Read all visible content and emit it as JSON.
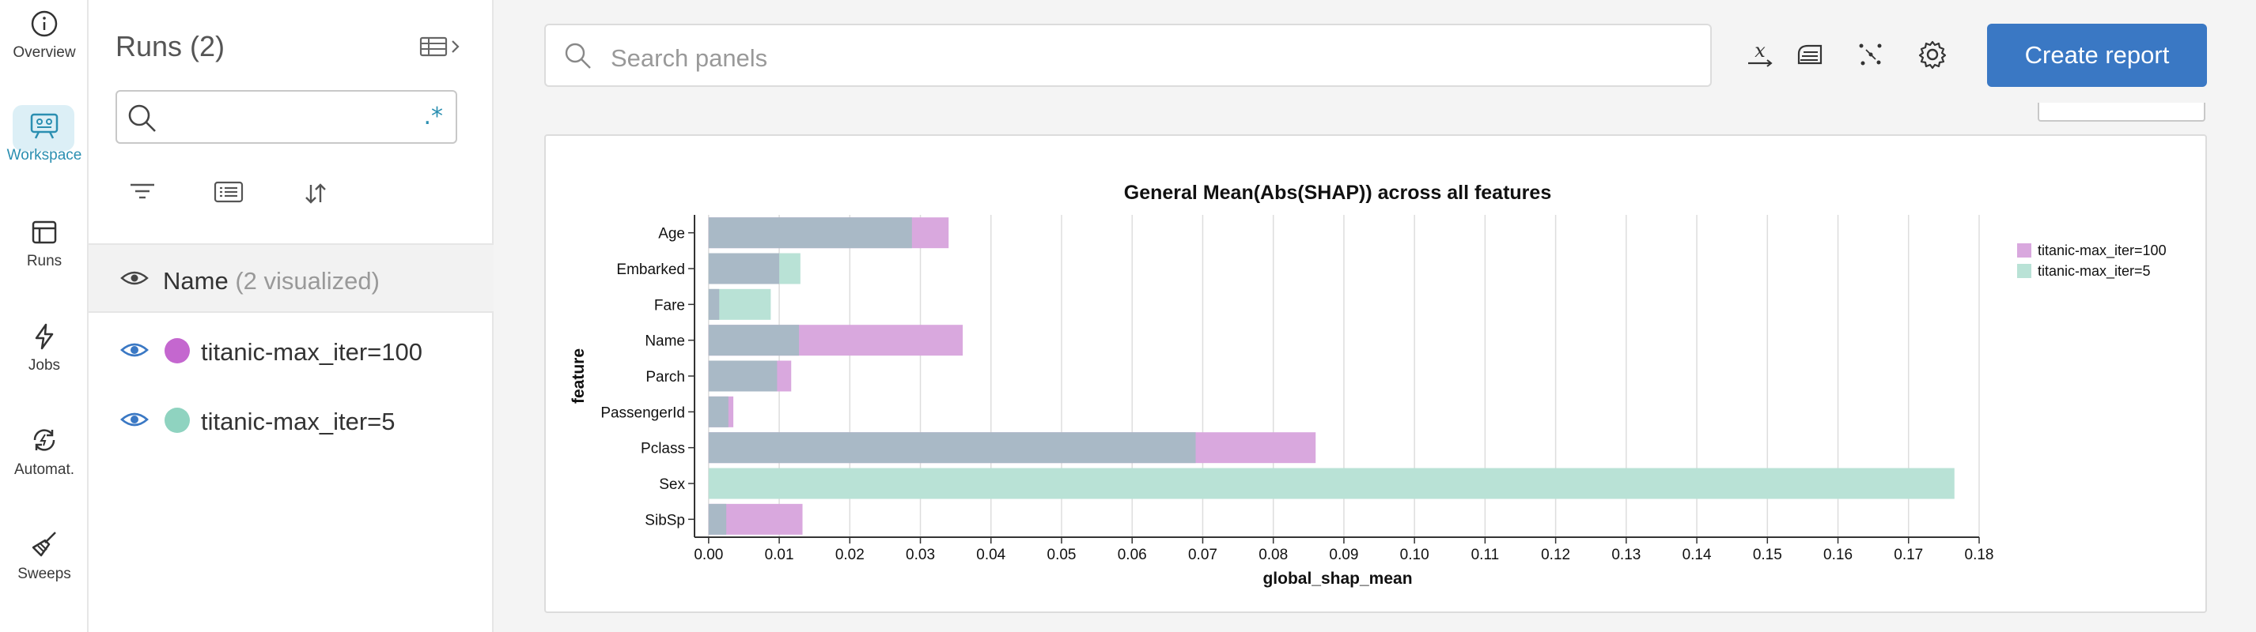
{
  "rail": {
    "items": [
      {
        "label": "Overview",
        "icon": "info-icon"
      },
      {
        "label": "Workspace",
        "icon": "workspace-icon"
      },
      {
        "label": "Runs",
        "icon": "table-icon"
      },
      {
        "label": "Jobs",
        "icon": "lightning-icon"
      },
      {
        "label": "Automat.",
        "icon": "automation-icon"
      },
      {
        "label": "Sweeps",
        "icon": "broom-icon"
      }
    ]
  },
  "runs_panel": {
    "title": "Runs (2)",
    "search_value": "",
    "regex_label": ".*",
    "header_name": "Name",
    "header_sub": "(2 visualized)",
    "runs": [
      {
        "name": "titanic-max_iter=100",
        "color": "#c467cf"
      },
      {
        "name": "titanic-max_iter=5",
        "color": "#8fd3c0"
      }
    ]
  },
  "toolbar": {
    "search_placeholder": "Search panels",
    "create_report_label": "Create report"
  },
  "chart_data": {
    "type": "bar",
    "orientation": "horizontal",
    "title": "General Mean(Abs(SHAP)) across all features",
    "xlabel": "global_shap_mean",
    "ylabel": "feature",
    "xlim": [
      -0.002,
      0.18
    ],
    "xticks": [
      "0.00",
      "0.01",
      "0.02",
      "0.03",
      "0.04",
      "0.05",
      "0.06",
      "0.07",
      "0.08",
      "0.09",
      "0.10",
      "0.11",
      "0.12",
      "0.13",
      "0.14",
      "0.15",
      "0.16",
      "0.17",
      "0.18"
    ],
    "grid": true,
    "legend_position": "top-right",
    "categories": [
      "Age",
      "Embarked",
      "Fare",
      "Name",
      "Parch",
      "PassengerId",
      "Pclass",
      "Sex",
      "SibSp"
    ],
    "series": [
      {
        "name": "titanic-max_iter=100",
        "color": "#d9a8de",
        "values": [
          0.034,
          0.01,
          0.0015,
          0.036,
          0.0117,
          0.0035,
          0.086,
          0.0,
          0.0133
        ]
      },
      {
        "name": "titanic-max_iter=5",
        "color": "#b9e2d6",
        "values": [
          0.0288,
          0.013,
          0.0088,
          0.0128,
          0.0097,
          0.0028,
          0.069,
          0.1765,
          0.0025
        ]
      }
    ],
    "overlap_color": "#a9b9c6"
  }
}
